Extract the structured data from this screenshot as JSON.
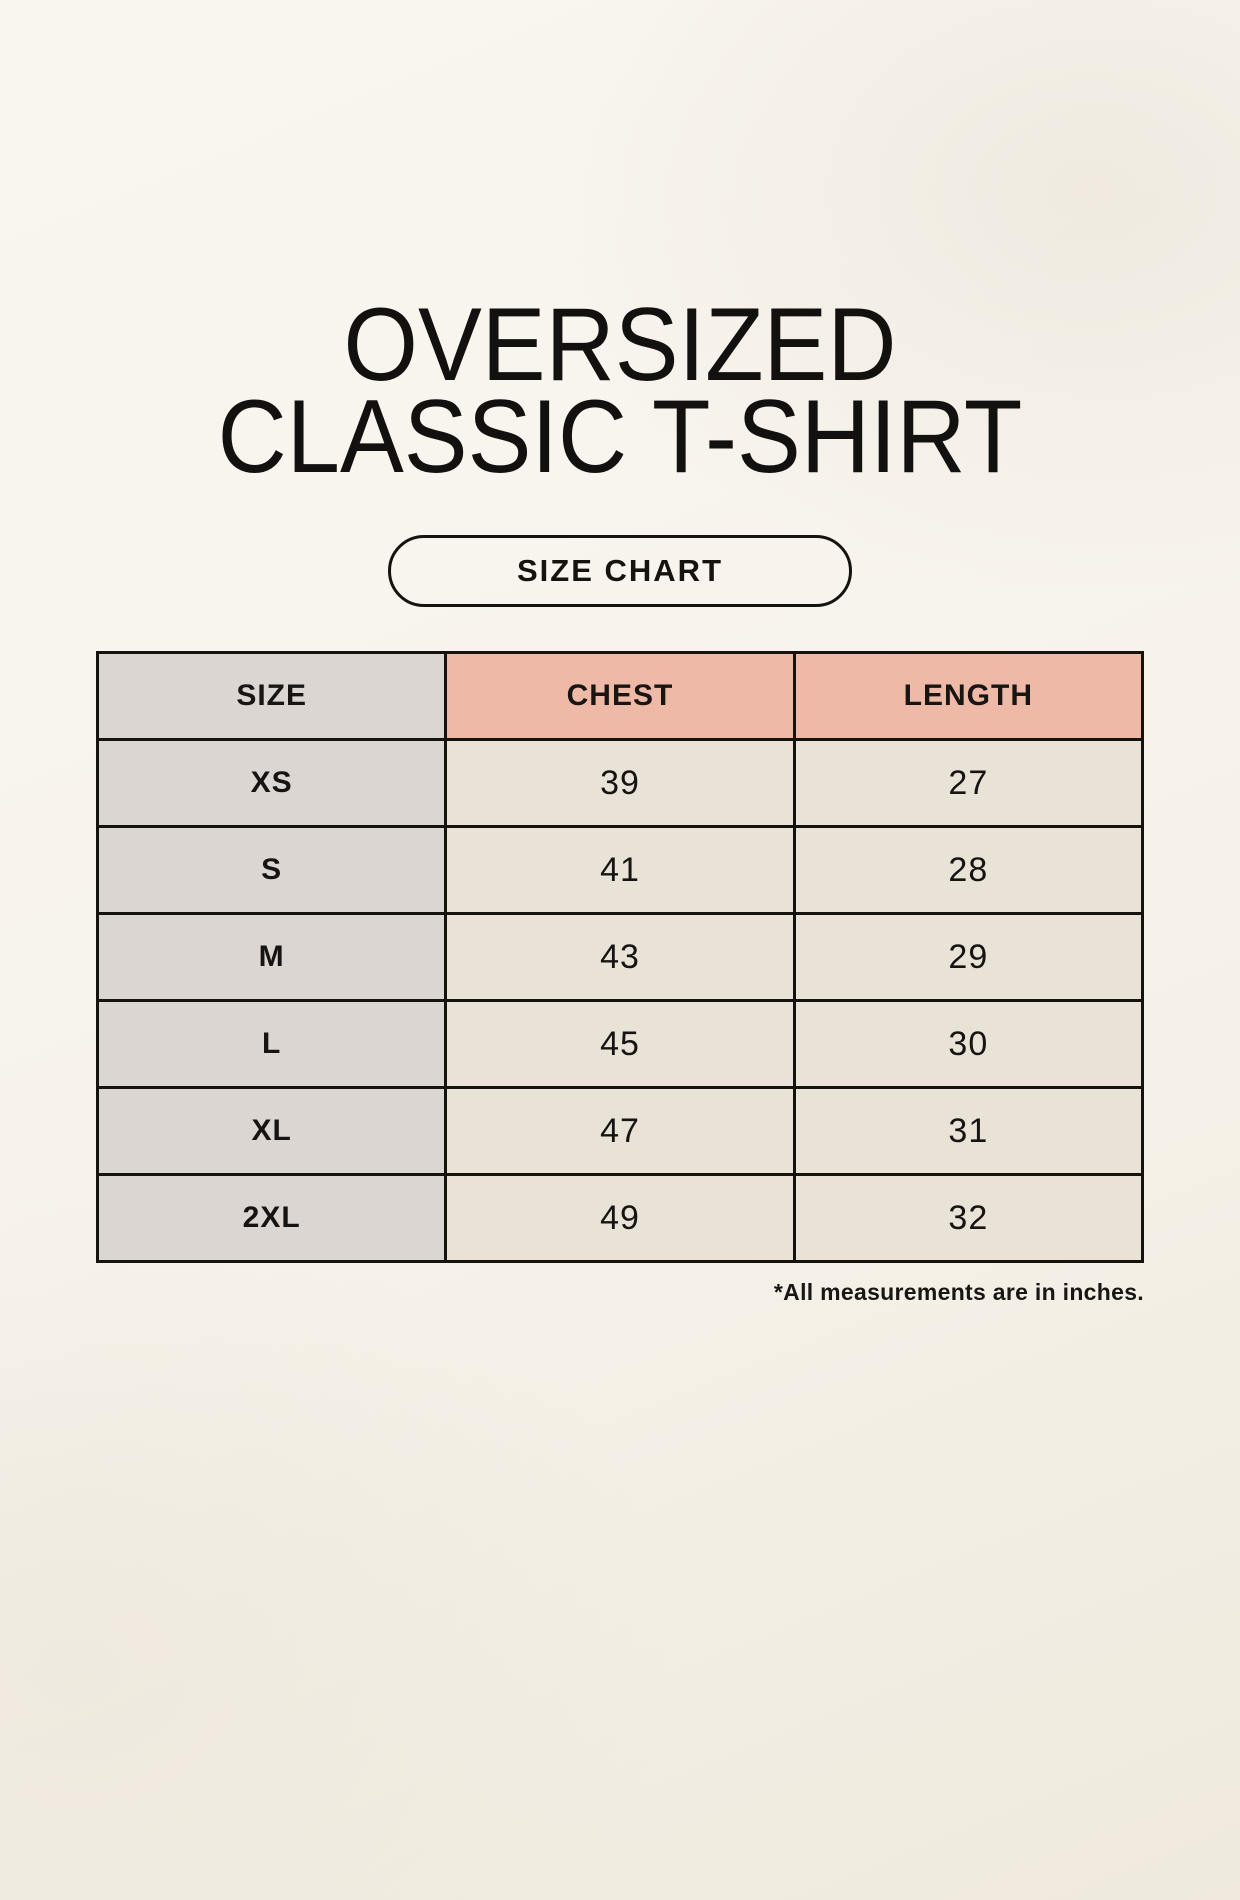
{
  "header": {
    "title_line1": "OVERSIZED",
    "title_line2": "CLASSIC T-SHIRT",
    "button_label": "SIZE CHART"
  },
  "chart_data": {
    "type": "table",
    "title": "OVERSIZED CLASSIC T-SHIRT",
    "columns": [
      "SIZE",
      "CHEST",
      "LENGTH"
    ],
    "rows": [
      [
        "XS",
        39,
        27
      ],
      [
        "S",
        41,
        28
      ],
      [
        "M",
        43,
        29
      ],
      [
        "L",
        45,
        30
      ],
      [
        "XL",
        47,
        31
      ],
      [
        "2XL",
        49,
        32
      ]
    ],
    "units": "inches",
    "note": "*All measurements are in inches."
  },
  "colors": {
    "page_background": "#f7f3ec",
    "size_column_background": "#dcd6d2",
    "measure_header_background": "#efb9a7",
    "value_cell_background": "#e9e2d6",
    "border": "#16130f",
    "text": "#161412"
  }
}
